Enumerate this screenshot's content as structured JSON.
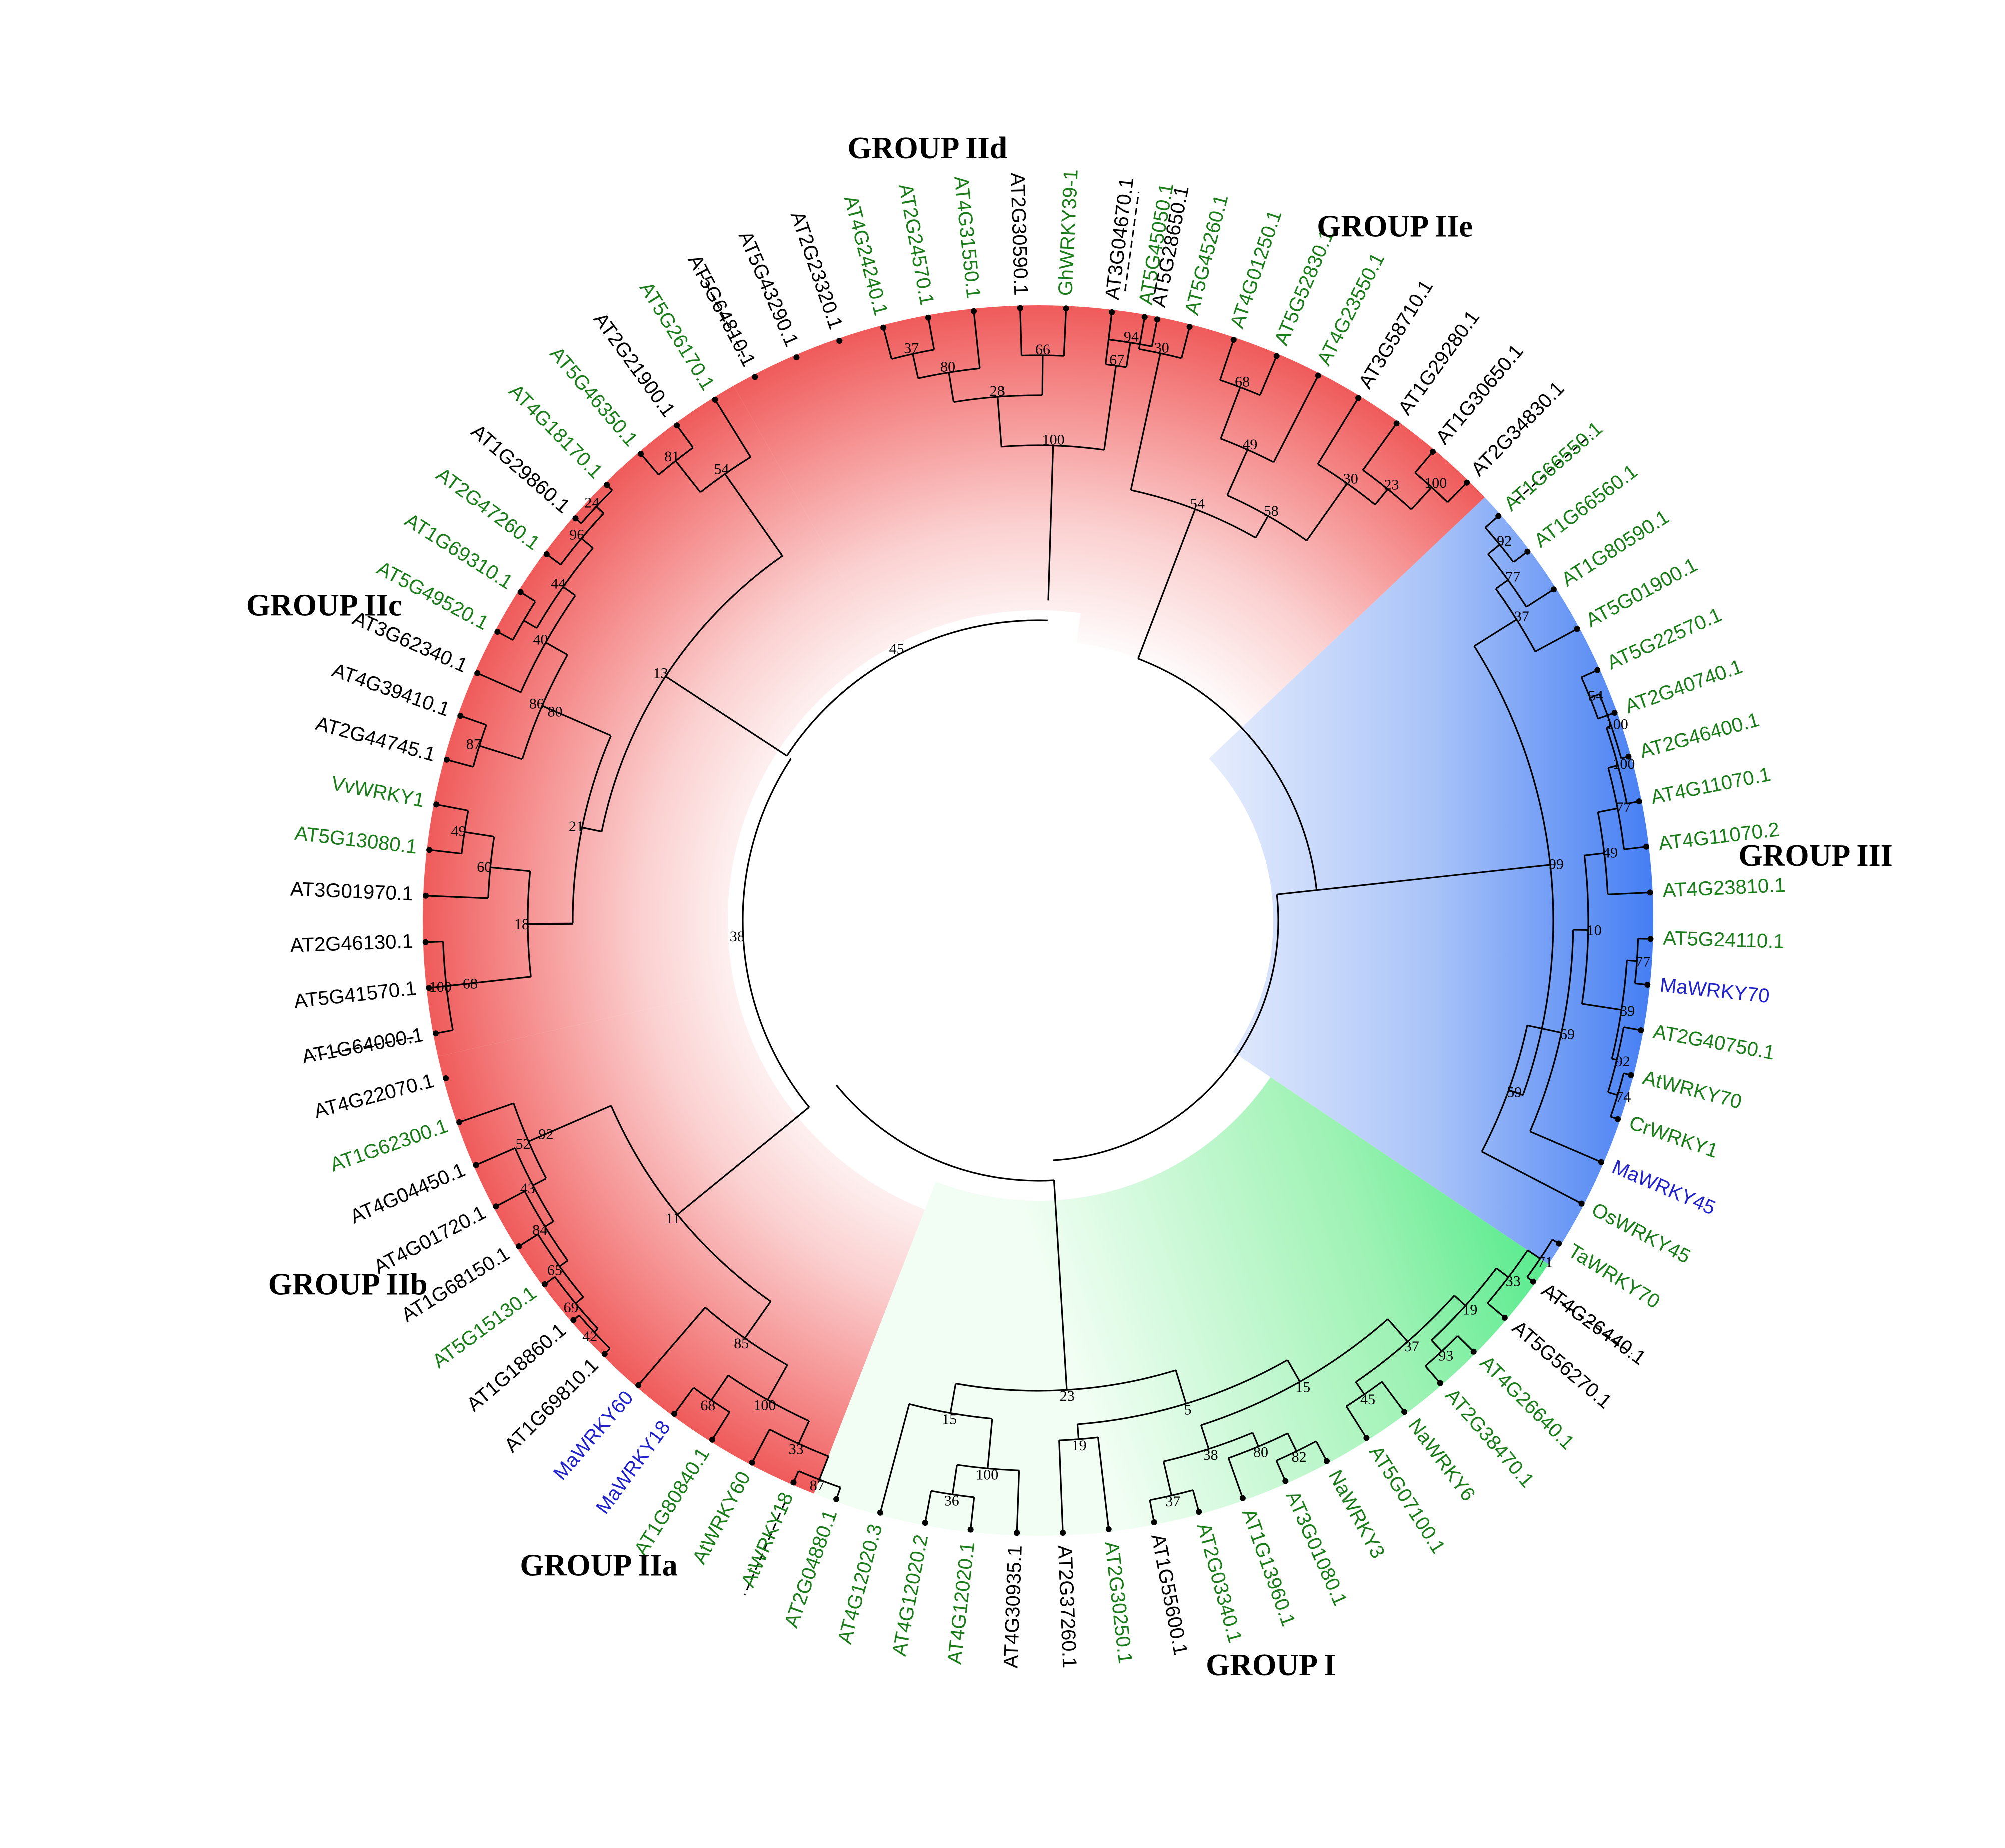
{
  "title": "WRKY phylogenetic tree",
  "colors": {
    "black": "#000000",
    "green": "#1a7d1a",
    "blue": "#2222cc",
    "red_light": "#fbd0d0",
    "red_mid": "#f58c8c",
    "red_strong": "#ee4d4d",
    "blue_light": "#e8eefc",
    "blue_strong": "#2f6ff2",
    "green_light": "#e4fbe8",
    "green_strong": "#19e46a"
  },
  "groups": [
    {
      "key": "IIe",
      "label": "GROUP IIe",
      "color": "red"
    },
    {
      "key": "III",
      "label": "GROUP III",
      "color": "blue"
    },
    {
      "key": "I",
      "label": "GROUP I",
      "color": "green"
    },
    {
      "key": "IIa",
      "label": "GROUP IIa",
      "color": "red"
    },
    {
      "key": "IIb",
      "label": "GROUP IIb",
      "color": "red"
    },
    {
      "key": "IIc",
      "label": "GROUP IIc",
      "color": "red"
    },
    {
      "key": "IId",
      "label": "GROUP IId",
      "color": "red"
    }
  ],
  "leaves": [
    {
      "label": "AT5G45050.1",
      "color": "green"
    },
    {
      "label": "AT5G45260.1",
      "color": "green"
    },
    {
      "label": "AT4G01250.1",
      "color": "green"
    },
    {
      "label": "AT5G52830.1",
      "color": "green"
    },
    {
      "label": "AT4G23550.1",
      "color": "green"
    },
    {
      "label": "AT3G58710.1",
      "color": "black"
    },
    {
      "label": "AT1G29280.1",
      "color": "black"
    },
    {
      "label": "AT1G30650.1",
      "color": "black"
    },
    {
      "label": "AT2G34830.1",
      "color": "black"
    },
    {
      "label": "AT1G66550.1",
      "color": "green"
    },
    {
      "label": "AT1G66560.1",
      "color": "green"
    },
    {
      "label": "AT1G80590.1",
      "color": "green"
    },
    {
      "label": "AT5G01900.1",
      "color": "green"
    },
    {
      "label": "AT5G22570.1",
      "color": "green"
    },
    {
      "label": "AT2G40740.1",
      "color": "green"
    },
    {
      "label": "AT2G46400.1",
      "color": "green"
    },
    {
      "label": "AT4G11070.1",
      "color": "green"
    },
    {
      "label": "AT4G11070.2",
      "color": "green"
    },
    {
      "label": "AT4G23810.1",
      "color": "green"
    },
    {
      "label": "AT5G24110.1",
      "color": "green"
    },
    {
      "label": "MaWRKY70",
      "color": "blue"
    },
    {
      "label": "AT2G40750.1",
      "color": "green"
    },
    {
      "label": "AtWRKY70",
      "color": "green"
    },
    {
      "label": "CrWRKY1",
      "color": "green"
    },
    {
      "label": "MaWRKY45",
      "color": "blue"
    },
    {
      "label": "OsWRKY45",
      "color": "green"
    },
    {
      "label": "TaWRKY70",
      "color": "green"
    },
    {
      "label": "AT4G26440.1",
      "color": "black"
    },
    {
      "label": "AT5G56270.1",
      "color": "black"
    },
    {
      "label": "AT4G26640.1",
      "color": "green"
    },
    {
      "label": "AT2G38470.1",
      "color": "green"
    },
    {
      "label": "NaWRKY6",
      "color": "green"
    },
    {
      "label": "AT5G07100.1",
      "color": "green"
    },
    {
      "label": "NaWRKY3",
      "color": "green"
    },
    {
      "label": "AT3G01080.1",
      "color": "green"
    },
    {
      "label": "AT1G13960.1",
      "color": "green"
    },
    {
      "label": "AT2G03340.1",
      "color": "green"
    },
    {
      "label": "AT1G55600.1",
      "color": "black"
    },
    {
      "label": "AT2G30250.1",
      "color": "green"
    },
    {
      "label": "AT2G37260.1",
      "color": "black"
    },
    {
      "label": "AT4G30935.1",
      "color": "black"
    },
    {
      "label": "AT4G12020.1",
      "color": "green"
    },
    {
      "label": "AT4G12020.2",
      "color": "green"
    },
    {
      "label": "AT4G12020.3",
      "color": "green"
    },
    {
      "label": "AT2G04880.1",
      "color": "green"
    },
    {
      "label": "AtWRKY18",
      "color": "green"
    },
    {
      "label": "AtWRKY60",
      "color": "green"
    },
    {
      "label": "AT1G80840.1",
      "color": "green"
    },
    {
      "label": "MaWRKY18",
      "color": "blue"
    },
    {
      "label": "MaWRKY60",
      "color": "blue"
    },
    {
      "label": "AT1G69810.1",
      "color": "black"
    },
    {
      "label": "AT1G18860.1",
      "color": "black"
    },
    {
      "label": "AT5G15130.1",
      "color": "green"
    },
    {
      "label": "AT1G68150.1",
      "color": "black"
    },
    {
      "label": "AT4G01720.1",
      "color": "black"
    },
    {
      "label": "AT4G04450.1",
      "color": "black"
    },
    {
      "label": "AT1G62300.1",
      "color": "green"
    },
    {
      "label": "AT4G22070.1",
      "color": "black"
    },
    {
      "label": "AT1G64000.1",
      "color": "black"
    },
    {
      "label": "AT5G41570.1",
      "color": "black"
    },
    {
      "label": "AT2G46130.1",
      "color": "black"
    },
    {
      "label": "AT3G01970.1",
      "color": "black"
    },
    {
      "label": "AT5G13080.1",
      "color": "green"
    },
    {
      "label": "VvWRKY1",
      "color": "green"
    },
    {
      "label": "AT2G44745.1",
      "color": "black"
    },
    {
      "label": "AT4G39410.1",
      "color": "black"
    },
    {
      "label": "AT3G62340.1",
      "color": "black"
    },
    {
      "label": "AT5G49520.1",
      "color": "green"
    },
    {
      "label": "AT1G69310.1",
      "color": "green"
    },
    {
      "label": "AT2G47260.1",
      "color": "green"
    },
    {
      "label": "AT1G29860.1",
      "color": "black"
    },
    {
      "label": "AT4G18170.1",
      "color": "green"
    },
    {
      "label": "AT5G46350.1",
      "color": "green"
    },
    {
      "label": "AT2G21900.1",
      "color": "black"
    },
    {
      "label": "AT5G26170.1",
      "color": "green"
    },
    {
      "label": "AT5G64810.1",
      "color": "black"
    },
    {
      "label": "AT5G43290.1",
      "color": "black"
    },
    {
      "label": "AT2G23320.1",
      "color": "black"
    },
    {
      "label": "AT4G24240.1",
      "color": "green"
    },
    {
      "label": "AT2G24570.1",
      "color": "green"
    },
    {
      "label": "AT4G31550.1",
      "color": "green"
    },
    {
      "label": "AT2G30590.1",
      "color": "black"
    },
    {
      "label": "GhWRKY39-1",
      "color": "green"
    },
    {
      "label": "AT3G04670.1",
      "color": "black"
    },
    {
      "label": "AT5G28650.1",
      "color": "black"
    }
  ],
  "bootstrap_values": [
    "30",
    "54",
    "68",
    "30",
    "23",
    "100",
    "49",
    "58",
    "42",
    "92",
    "77",
    "37",
    "99",
    "54",
    "100",
    "100",
    "77",
    "49",
    "71",
    "77",
    "92",
    "74",
    "39",
    "10",
    "69",
    "59",
    "71",
    "33",
    "19",
    "93",
    "45",
    "37",
    "82",
    "80",
    "38",
    "37",
    "19",
    "15",
    "36",
    "100",
    "15",
    "5",
    "23",
    "87",
    "33",
    "100",
    "68",
    "42",
    "69",
    "65",
    "84",
    "43",
    "52",
    "92",
    "85",
    "11",
    "100",
    "68",
    "81",
    "49",
    "60",
    "85",
    "87",
    "18",
    "24",
    "40",
    "96",
    "86",
    "44",
    "80",
    "21",
    "54",
    "13",
    "37",
    "80",
    "28",
    "94",
    "67",
    "66",
    "100",
    "45",
    "38"
  ]
}
